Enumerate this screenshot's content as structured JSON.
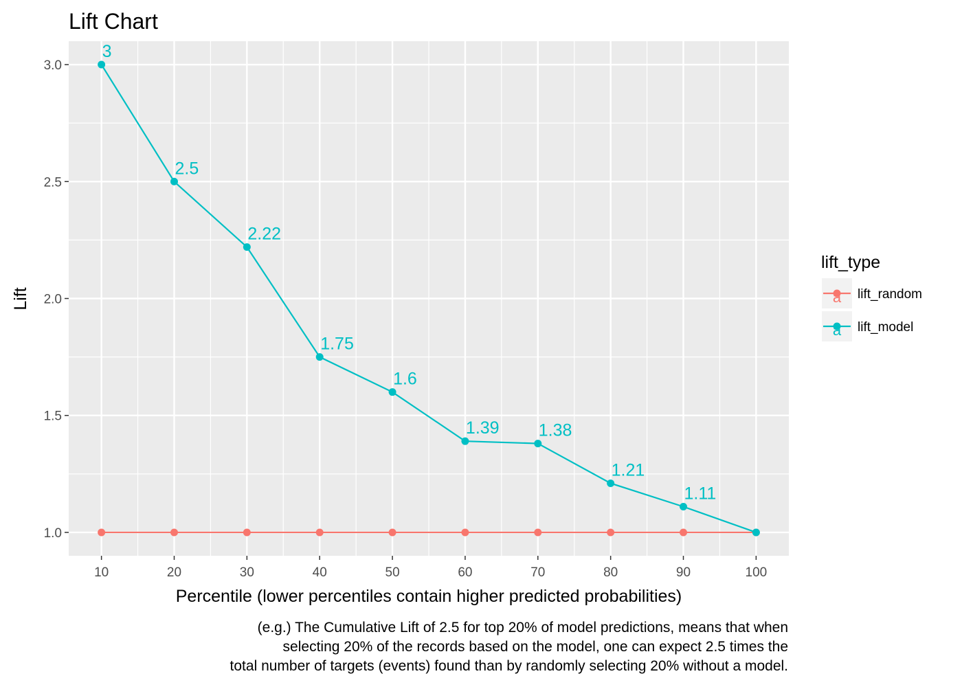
{
  "chart_data": {
    "type": "line",
    "title": "Lift Chart",
    "xlabel": "Percentile (lower percentiles contain higher predicted probabilities)",
    "ylabel": "Lift",
    "x": [
      10,
      20,
      30,
      40,
      50,
      60,
      70,
      80,
      90,
      100
    ],
    "xlim": [
      5.5,
      104.5
    ],
    "ylim": [
      0.9,
      3.1
    ],
    "xticks": [
      10,
      20,
      30,
      40,
      50,
      60,
      70,
      80,
      90,
      100
    ],
    "xtick_labels": [
      "10",
      "20",
      "30",
      "40",
      "50",
      "60",
      "70",
      "80",
      "90",
      "100"
    ],
    "yticks": [
      1.0,
      1.5,
      2.0,
      2.5,
      3.0
    ],
    "ytick_labels": [
      "1.0",
      "1.5",
      "2.0",
      "2.5",
      "3.0"
    ],
    "grid": true,
    "legend_title": "lift_type",
    "legend_position": "right",
    "series": [
      {
        "name": "lift_random",
        "color": "#F8766D",
        "values": [
          1,
          1,
          1,
          1,
          1,
          1,
          1,
          1,
          1,
          1
        ],
        "labels": []
      },
      {
        "name": "lift_model",
        "color": "#00BFC4",
        "values": [
          3,
          2.5,
          2.22,
          1.75,
          1.6,
          1.39,
          1.38,
          1.21,
          1.11,
          1.0
        ],
        "labels": [
          "3",
          "2.5",
          "2.22",
          "1.75",
          "1.6",
          "1.39",
          "1.38",
          "1.21",
          "1.11",
          ""
        ]
      }
    ],
    "caption_lines": [
      "(e.g.) The Cumulative Lift of 2.5 for top 20% of model predictions, means that when",
      "selecting 20% of the records based on the model, one can expect 2.5 times the",
      "total number of targets (events) found than by randomly selecting 20% without a model."
    ],
    "legend_key_glyph": "a"
  }
}
